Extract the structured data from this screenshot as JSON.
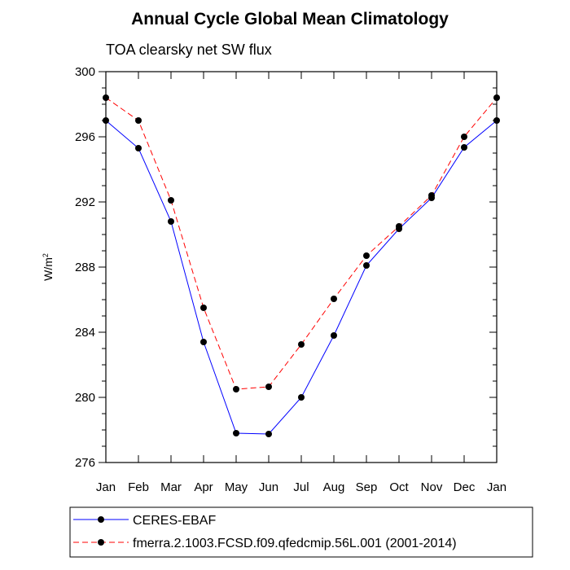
{
  "chart_data": {
    "type": "line",
    "title": "Annual Cycle Global Mean Climatology",
    "subtitle": "TOA clearsky net SW flux",
    "xlabel": "",
    "ylabel_base": "W/m",
    "ylabel_sup": "2",
    "categories": [
      "Jan",
      "Feb",
      "Mar",
      "Apr",
      "May",
      "Jun",
      "Jul",
      "Aug",
      "Sep",
      "Oct",
      "Nov",
      "Dec",
      "Jan"
    ],
    "ylim": [
      276,
      300
    ],
    "yticks": [
      276,
      280,
      284,
      288,
      292,
      296,
      300
    ],
    "grid": false,
    "legend_position": "bottom",
    "series": [
      {
        "name": "CERES-EBAF",
        "color": "#0000ff",
        "dash": "solid",
        "values": [
          297.0,
          295.3,
          290.8,
          283.4,
          277.8,
          277.75,
          280.0,
          283.8,
          288.1,
          290.35,
          292.25,
          295.35,
          297.0
        ]
      },
      {
        "name": "fmerra.2.1003.FCSD.f09.qfedcmip.56L.001 (2001-2014)",
        "color": "#ff0000",
        "dash": "dashed",
        "values": [
          298.4,
          297.0,
          292.1,
          285.5,
          280.5,
          280.65,
          283.25,
          286.05,
          288.7,
          290.5,
          292.4,
          296.0,
          298.4
        ]
      }
    ]
  }
}
